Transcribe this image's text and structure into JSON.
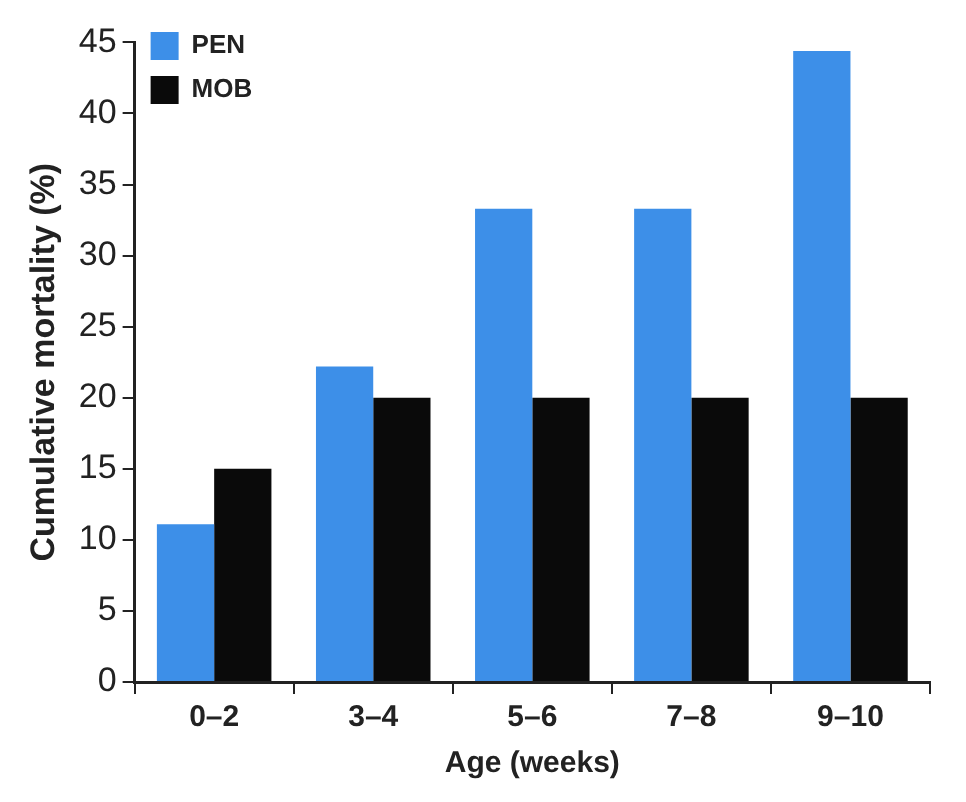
{
  "chart_data": {
    "type": "bar",
    "xlabel": "Age (weeks)",
    "ylabel": "Cumulative mortality (%)",
    "categories": [
      "0–2",
      "3–4",
      "5–6",
      "7–8",
      "9–10"
    ],
    "series": [
      {
        "name": "PEN",
        "color": "#3d8fe8",
        "values": [
          11.1,
          22.2,
          33.3,
          33.3,
          44.4
        ]
      },
      {
        "name": "MOB",
        "color": "#0a0a0a",
        "values": [
          15,
          20,
          20,
          20,
          20
        ]
      }
    ],
    "ylim": [
      0,
      45
    ],
    "yticks": [
      0,
      5,
      10,
      15,
      20,
      25,
      30,
      35,
      40,
      45
    ],
    "grid": false,
    "legend": "top left"
  }
}
